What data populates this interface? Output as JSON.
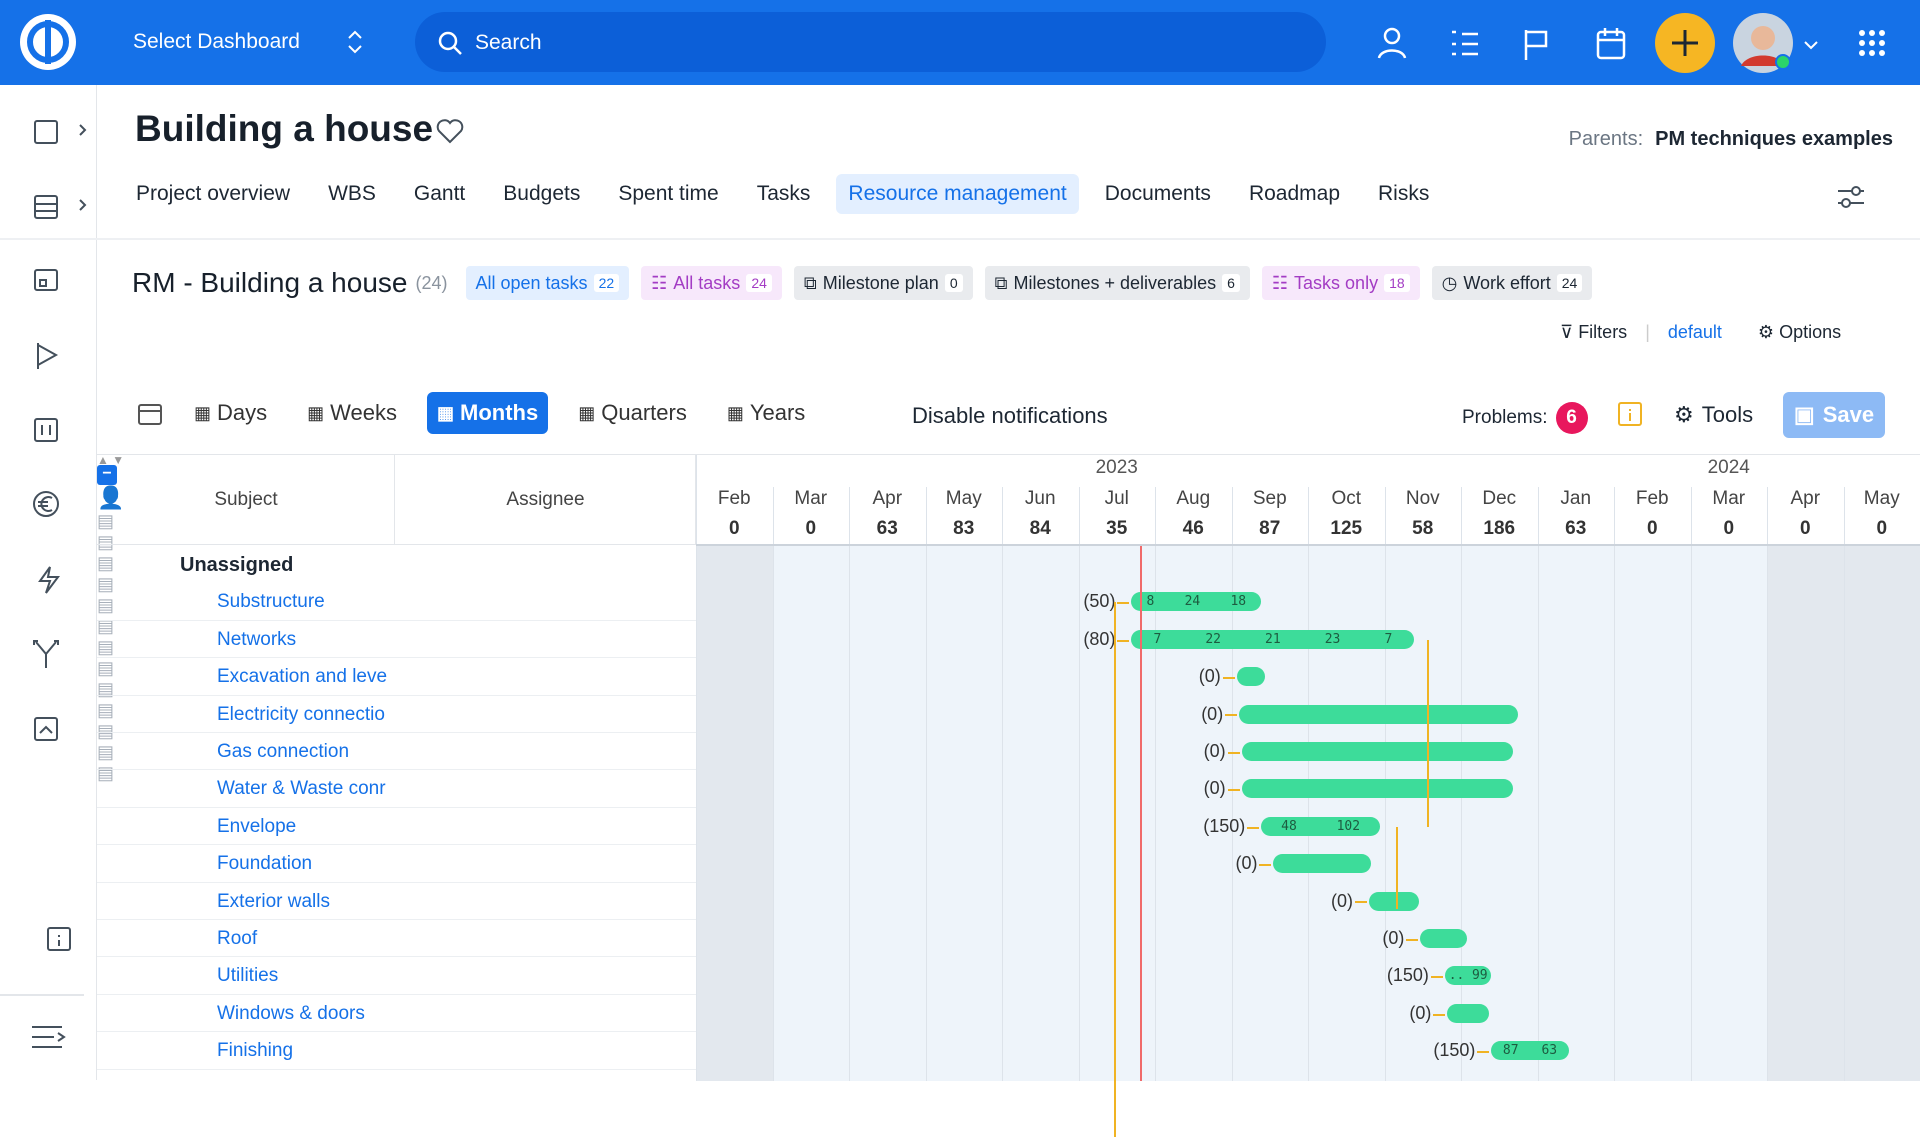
{
  "topbar": {
    "dashboard": "Select Dashboard",
    "search": "Search"
  },
  "header": {
    "title": "Building a house",
    "parents_label": "Parents:",
    "parents_value": "PM techniques examples"
  },
  "tabs": [
    "Project overview",
    "WBS",
    "Gantt",
    "Budgets",
    "Spent time",
    "Tasks",
    "Resource management",
    "Documents",
    "Roadmap",
    "Risks"
  ],
  "rm": {
    "title": "RM - Building a house",
    "count": "(24)",
    "views": [
      {
        "label": "All open tasks",
        "count": 22
      },
      {
        "label": "All tasks",
        "count": 24
      },
      {
        "label": "Milestone plan",
        "count": 0
      },
      {
        "label": "Milestones + deliverables",
        "count": 6
      },
      {
        "label": "Tasks only",
        "count": 18
      },
      {
        "label": "Work effort",
        "count": 24
      }
    ],
    "filters": "Filters",
    "default": "default",
    "options": "Options"
  },
  "toolbar": {
    "zoom": [
      "Days",
      "Weeks",
      "Months",
      "Quarters",
      "Years"
    ],
    "disable": "Disable notifications",
    "problems": "Problems:",
    "problems_count": 6,
    "tools": "Tools",
    "save": "Save"
  },
  "grid": {
    "subject": "Subject",
    "assignee": "Assignee",
    "years": [
      "2023",
      "2024"
    ],
    "months": [
      "Feb",
      "Mar",
      "Apr",
      "May",
      "Jun",
      "Jul",
      "Aug",
      "Sep",
      "Oct",
      "Nov",
      "Dec",
      "Jan",
      "Feb",
      "Mar",
      "Apr",
      "May"
    ],
    "totals": [
      0,
      0,
      63,
      83,
      84,
      35,
      46,
      87,
      125,
      58,
      186,
      63,
      0,
      0,
      0,
      0
    ],
    "group": "Unassigned",
    "rows": [
      {
        "subject": "Substructure",
        "load": "(50)",
        "bars": [
          8,
          24,
          18
        ]
      },
      {
        "subject": "Networks",
        "load": "(80)",
        "bars": [
          7,
          22,
          21,
          23,
          7
        ]
      },
      {
        "subject": "Excavation and leve",
        "load": "(0)",
        "bars": []
      },
      {
        "subject": "Electricity connectio",
        "load": "(0)",
        "bars": []
      },
      {
        "subject": "Gas connection",
        "load": "(0)",
        "bars": []
      },
      {
        "subject": "Water & Waste conr",
        "load": "(0)",
        "bars": []
      },
      {
        "subject": "Envelope",
        "load": "(150)",
        "bars": [
          48,
          102
        ]
      },
      {
        "subject": "Foundation",
        "load": "(0)",
        "bars": []
      },
      {
        "subject": "Exterior walls",
        "load": "(0)",
        "bars": []
      },
      {
        "subject": "Roof",
        "load": "(0)",
        "bars": []
      },
      {
        "subject": "Utilities",
        "load": "(150)",
        "bars": [
          "..",
          99
        ]
      },
      {
        "subject": "Windows & doors",
        "load": "(0)",
        "bars": []
      },
      {
        "subject": "Finishing",
        "load": "(150)",
        "bars": [
          87,
          63
        ]
      }
    ]
  }
}
